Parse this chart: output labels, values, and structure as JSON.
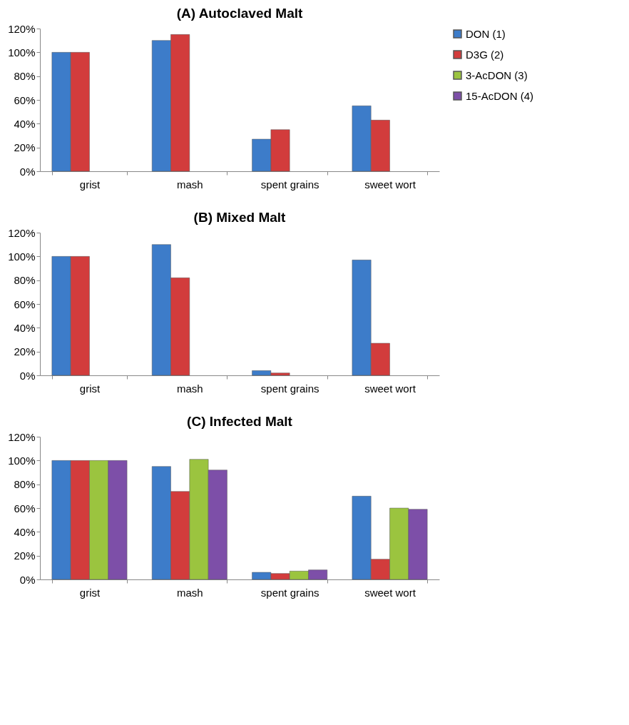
{
  "chart_data": [
    {
      "type": "bar",
      "title": "(A) Autoclaved Malt",
      "categories": [
        "grist",
        "mash",
        "spent grains",
        "sweet wort"
      ],
      "ylim": [
        0,
        120
      ],
      "yticks": [
        {
          "value": 0,
          "label": "0%"
        },
        {
          "value": 20,
          "label": "20%"
        },
        {
          "value": 40,
          "label": "40%"
        },
        {
          "value": 60,
          "label": "60%"
        },
        {
          "value": 80,
          "label": "80%"
        },
        {
          "value": 100,
          "label": "100%"
        },
        {
          "value": 120,
          "label": "120%"
        }
      ],
      "grid": false,
      "legend": "right",
      "series": [
        {
          "name": "DON (1)",
          "color": "#3d7cc9",
          "values": [
            100,
            110,
            27,
            55
          ]
        },
        {
          "name": "D3G (2)",
          "color": "#d23c3c",
          "values": [
            100,
            115,
            35,
            43
          ]
        },
        {
          "name": "3-AcDON (3)",
          "color": "#9bc43f",
          "values": [
            null,
            null,
            null,
            null
          ]
        },
        {
          "name": "15-AcDON (4)",
          "color": "#7d4fa8",
          "values": [
            null,
            null,
            null,
            null
          ]
        }
      ]
    },
    {
      "type": "bar",
      "title": "(B) Mixed Malt",
      "categories": [
        "grist",
        "mash",
        "spent grains",
        "sweet wort"
      ],
      "ylim": [
        0,
        120
      ],
      "yticks": [
        {
          "value": 0,
          "label": "0%"
        },
        {
          "value": 20,
          "label": "20%"
        },
        {
          "value": 40,
          "label": "40%"
        },
        {
          "value": 60,
          "label": "60%"
        },
        {
          "value": 80,
          "label": "80%"
        },
        {
          "value": 100,
          "label": "100%"
        },
        {
          "value": 120,
          "label": "120%"
        }
      ],
      "grid": false,
      "series": [
        {
          "color": "#3d7cc9",
          "values": [
            100,
            110,
            4,
            97
          ]
        },
        {
          "color": "#d23c3c",
          "values": [
            100,
            82,
            2,
            27
          ]
        },
        {
          "color": "#9bc43f",
          "values": [
            null,
            null,
            null,
            null
          ]
        },
        {
          "color": "#7d4fa8",
          "values": [
            null,
            null,
            null,
            null
          ]
        }
      ]
    },
    {
      "type": "bar",
      "title": "(C) Infected Malt",
      "categories": [
        "grist",
        "mash",
        "spent grains",
        "sweet wort"
      ],
      "ylim": [
        0,
        120
      ],
      "yticks": [
        {
          "value": 0,
          "label": "0%"
        },
        {
          "value": 20,
          "label": "20%"
        },
        {
          "value": 40,
          "label": "40%"
        },
        {
          "value": 60,
          "label": "60%"
        },
        {
          "value": 80,
          "label": "80%"
        },
        {
          "value": 100,
          "label": "100%"
        },
        {
          "value": 120,
          "label": "120%"
        }
      ],
      "grid": false,
      "series": [
        {
          "color": "#3d7cc9",
          "values": [
            100,
            95,
            6,
            70
          ]
        },
        {
          "color": "#d23c3c",
          "values": [
            100,
            74,
            5,
            17
          ]
        },
        {
          "color": "#9bc43f",
          "values": [
            100,
            101,
            7,
            60
          ]
        },
        {
          "color": "#7d4fa8",
          "values": [
            100,
            92,
            8,
            59
          ]
        }
      ]
    }
  ]
}
